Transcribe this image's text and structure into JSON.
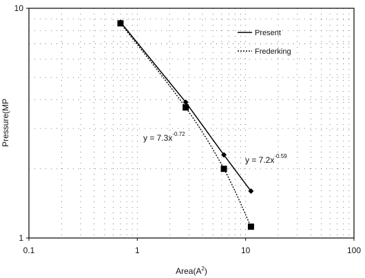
{
  "chart_data": {
    "type": "scatter",
    "x_scale": "log",
    "y_scale": "log",
    "xlim": [
      0.1,
      100
    ],
    "ylim": [
      1,
      10
    ],
    "x_ticks": [
      {
        "value": 0.1,
        "label": "0.1"
      },
      {
        "value": 1,
        "label": "1"
      },
      {
        "value": 10,
        "label": "10"
      },
      {
        "value": 100,
        "label": "100"
      }
    ],
    "y_ticks": [
      {
        "value": 1,
        "label": "1"
      },
      {
        "value": 10,
        "label": "10"
      }
    ],
    "xlabel": "Area(A",
    "xlabel_sup": "2",
    "xlabel_end": ")",
    "ylabel": "Pressure(MP",
    "grid": "dotted",
    "legend_position": "top-right",
    "series": [
      {
        "name": "Present",
        "marker": "diamond",
        "line_style": "solid",
        "color": "#000000",
        "points": [
          {
            "x": 0.7,
            "y": 8.7
          },
          {
            "x": 2.8,
            "y": 3.9
          },
          {
            "x": 6.3,
            "y": 2.3
          },
          {
            "x": 11.2,
            "y": 1.6
          }
        ],
        "equation": {
          "base": "y = 7.2x",
          "exponent": "-0.59"
        }
      },
      {
        "name": "Frederking",
        "marker": "square",
        "line_style": "dotted",
        "color": "#000000",
        "points": [
          {
            "x": 0.7,
            "y": 8.6
          },
          {
            "x": 2.8,
            "y": 3.7
          },
          {
            "x": 6.3,
            "y": 2.0
          },
          {
            "x": 11.2,
            "y": 1.12
          }
        ],
        "equation": {
          "base": "y = 7.3x",
          "exponent": "-0.72"
        }
      }
    ]
  }
}
